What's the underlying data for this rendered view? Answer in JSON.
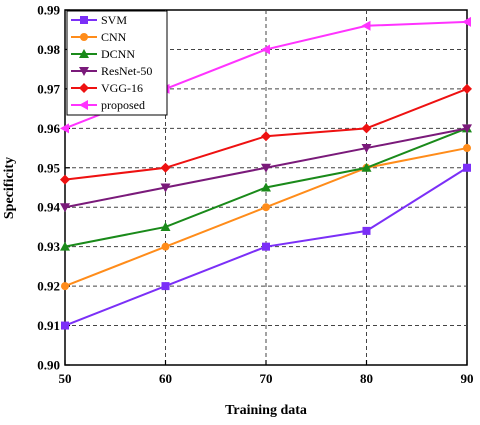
{
  "chart_data": {
    "type": "line",
    "xlabel": "Training data",
    "ylabel": "Specificity",
    "x": [
      50,
      60,
      70,
      80,
      90
    ],
    "xlim": [
      50,
      90
    ],
    "ylim": [
      0.9,
      0.99
    ],
    "x_ticks": [
      "50",
      "60",
      "70",
      "80",
      "90"
    ],
    "y_ticks": [
      "0.90",
      "0.91",
      "0.92",
      "0.93",
      "0.94",
      "0.95",
      "0.96",
      "0.97",
      "0.98",
      "0.99"
    ],
    "grid": true,
    "legend_position": "top-left",
    "series": [
      {
        "name": "SVM",
        "color": "#7b2ff7",
        "marker": "square",
        "values": [
          0.91,
          0.92,
          0.93,
          0.934,
          0.95
        ]
      },
      {
        "name": "CNN",
        "color": "#ff8c1a",
        "marker": "circle",
        "values": [
          0.92,
          0.93,
          0.94,
          0.95,
          0.955
        ]
      },
      {
        "name": "DCNN",
        "color": "#1a8a1a",
        "marker": "triangle",
        "values": [
          0.93,
          0.935,
          0.945,
          0.95,
          0.96
        ]
      },
      {
        "name": "ResNet-50",
        "color": "#7a1a7a",
        "marker": "triangle-down",
        "values": [
          0.94,
          0.945,
          0.95,
          0.955,
          0.96
        ]
      },
      {
        "name": "VGG-16",
        "color": "#ee1111",
        "marker": "diamond",
        "values": [
          0.947,
          0.95,
          0.958,
          0.96,
          0.97
        ]
      },
      {
        "name": "proposed",
        "color": "#ff33ff",
        "marker": "triangle-left",
        "values": [
          0.96,
          0.97,
          0.98,
          0.986,
          0.987
        ]
      }
    ]
  }
}
